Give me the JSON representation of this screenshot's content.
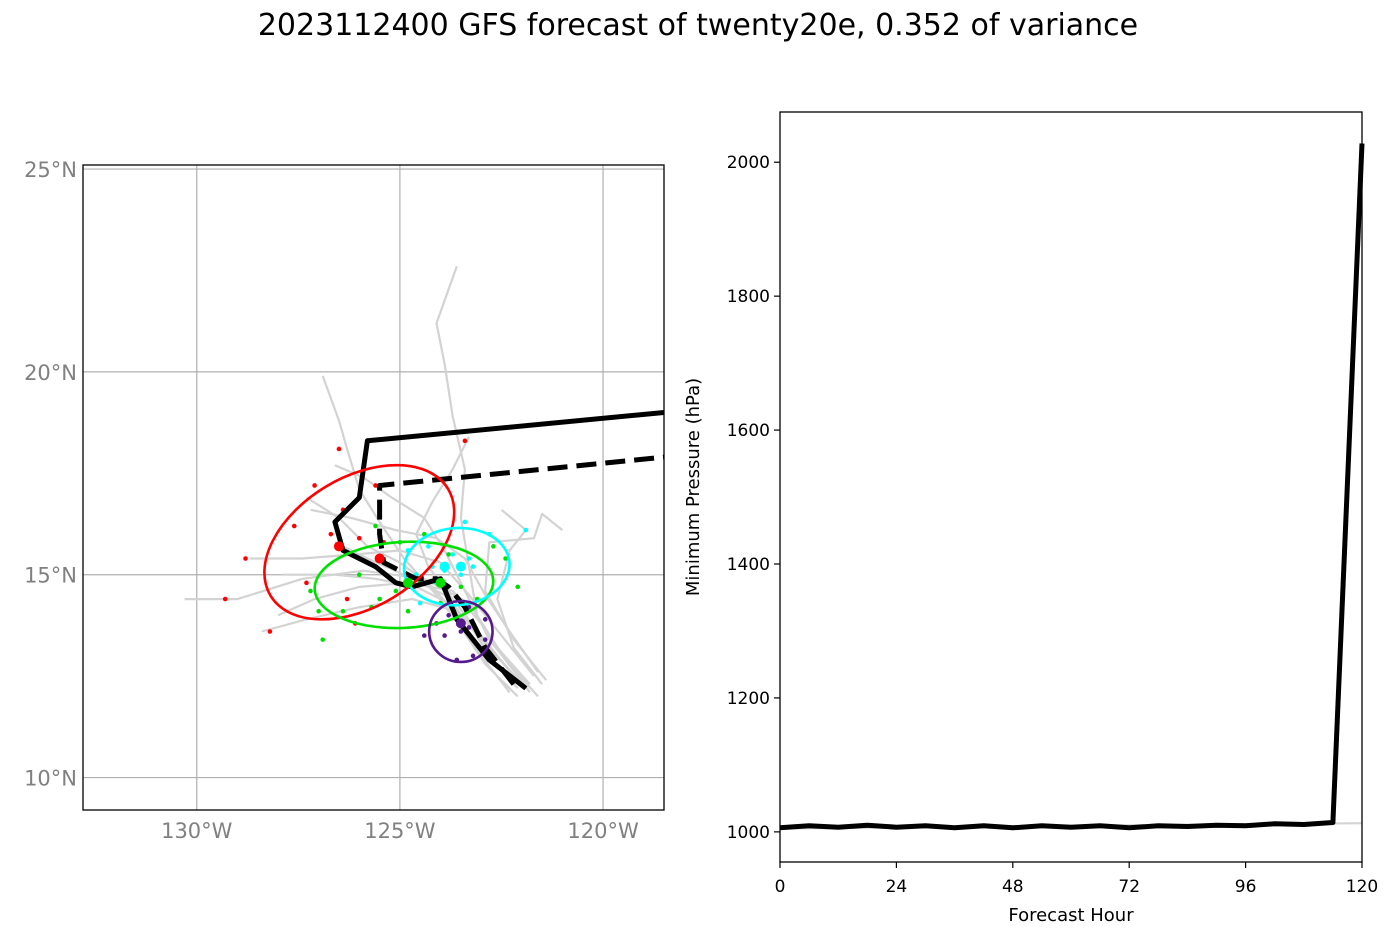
{
  "title": "2023112400 GFS forecast of twenty20e, 0.352 of variance",
  "colors": {
    "mean_track": "#000000",
    "ensemble": "#d3d3d3",
    "cluster_red": "#ff0000",
    "cluster_green": "#00e000",
    "cluster_cyan": "#00ffff",
    "cluster_purple": "#551a8b",
    "grid": "#b0b0b0"
  },
  "chart_data": [
    {
      "type": "map",
      "lon_range": [
        -132.8,
        -118.5
      ],
      "lat_range": [
        9.2,
        25.1
      ],
      "lon_ticks": [
        -130,
        -125,
        -120
      ],
      "lon_tick_labels": [
        "130°W",
        "125°W",
        "120°W"
      ],
      "lat_ticks": [
        25,
        20,
        15,
        10
      ],
      "lat_tick_labels": [
        "25°N",
        "20°N",
        "15°N",
        "10°N"
      ],
      "grid": true,
      "mean_track_solid": [
        [
          -121.9,
          12.2
        ],
        [
          -122.8,
          12.9
        ],
        [
          -123.6,
          13.9
        ],
        [
          -124.0,
          14.9
        ],
        [
          -124.7,
          14.7
        ],
        [
          -125.1,
          14.8
        ],
        [
          -125.6,
          15.2
        ],
        [
          -126.4,
          15.6
        ],
        [
          -126.6,
          16.3
        ],
        [
          -126.0,
          16.9
        ],
        [
          -125.8,
          18.3
        ],
        [
          -118.5,
          19.0
        ]
      ],
      "mean_track_dashed": [
        [
          -122.2,
          12.3
        ],
        [
          -122.9,
          13.2
        ],
        [
          -123.4,
          14.2
        ],
        [
          -123.8,
          14.7
        ],
        [
          -124.1,
          14.9
        ],
        [
          -124.6,
          14.9
        ],
        [
          -125.4,
          15.3
        ],
        [
          -125.5,
          16.0
        ],
        [
          -125.5,
          17.2
        ],
        [
          -118.5,
          17.9
        ]
      ],
      "ensemble_tracks": [
        [
          [
            -122.0,
            12.3
          ],
          [
            -122.9,
            13.3
          ],
          [
            -123.8,
            14.3
          ],
          [
            -124.6,
            14.7
          ],
          [
            -125.6,
            14.9
          ],
          [
            -126.6,
            15.0
          ],
          [
            -127.9,
            15.0
          ]
        ],
        [
          [
            -122.3,
            12.1
          ],
          [
            -123.0,
            13.0
          ],
          [
            -123.6,
            14.0
          ],
          [
            -124.2,
            14.7
          ],
          [
            -125.0,
            15.3
          ],
          [
            -125.8,
            15.7
          ],
          [
            -126.5,
            16.4
          ],
          [
            -127.3,
            16.9
          ]
        ],
        [
          [
            -121.6,
            12.0
          ],
          [
            -122.4,
            12.9
          ],
          [
            -123.1,
            14.0
          ],
          [
            -123.3,
            15.2
          ],
          [
            -123.5,
            16.4
          ],
          [
            -123.4,
            17.6
          ],
          [
            -123.7,
            18.9
          ],
          [
            -123.9,
            20.2
          ],
          [
            -124.1,
            21.2
          ],
          [
            -123.6,
            22.6
          ]
        ],
        [
          [
            -121.8,
            12.3
          ],
          [
            -122.6,
            13.2
          ],
          [
            -123.3,
            14.3
          ],
          [
            -124.4,
            14.9
          ],
          [
            -125.9,
            15.1
          ],
          [
            -127.4,
            14.9
          ],
          [
            -129.0,
            14.4
          ],
          [
            -130.3,
            14.4
          ]
        ],
        [
          [
            -121.4,
            12.4
          ],
          [
            -122.2,
            13.4
          ],
          [
            -122.9,
            14.6
          ],
          [
            -122.8,
            15.8
          ],
          [
            -121.7,
            15.9
          ],
          [
            -121.5,
            16.5
          ],
          [
            -121.0,
            16.1
          ]
        ],
        [
          [
            -122.1,
            12.0
          ],
          [
            -122.9,
            12.8
          ],
          [
            -123.5,
            13.7
          ],
          [
            -124.1,
            14.5
          ],
          [
            -124.9,
            15.4
          ],
          [
            -125.5,
            16.3
          ],
          [
            -126.0,
            17.1
          ],
          [
            -126.3,
            18.1
          ],
          [
            -126.5,
            18.8
          ],
          [
            -126.9,
            19.9
          ]
        ],
        [
          [
            -121.7,
            12.5
          ],
          [
            -122.5,
            13.5
          ],
          [
            -123.3,
            14.5
          ],
          [
            -124.0,
            15.3
          ],
          [
            -125.0,
            15.6
          ],
          [
            -126.1,
            15.5
          ],
          [
            -127.4,
            15.4
          ],
          [
            -128.7,
            15.4
          ]
        ],
        [
          [
            -121.9,
            12.2
          ],
          [
            -122.7,
            13.1
          ],
          [
            -123.6,
            14.1
          ],
          [
            -124.7,
            14.4
          ],
          [
            -126.0,
            14.2
          ],
          [
            -127.3,
            13.9
          ],
          [
            -128.4,
            13.6
          ]
        ],
        [
          [
            -121.5,
            12.3
          ],
          [
            -122.2,
            13.2
          ],
          [
            -122.6,
            14.4
          ],
          [
            -122.3,
            15.6
          ],
          [
            -121.9,
            16.1
          ],
          [
            -122.5,
            16.6
          ]
        ],
        [
          [
            -122.0,
            12.4
          ],
          [
            -122.8,
            13.4
          ],
          [
            -123.4,
            14.6
          ],
          [
            -123.9,
            15.6
          ],
          [
            -124.4,
            16.4
          ],
          [
            -125.2,
            16.9
          ],
          [
            -125.9,
            17.4
          ],
          [
            -126.6,
            17.7
          ]
        ],
        [
          [
            -121.8,
            12.1
          ],
          [
            -122.4,
            12.9
          ],
          [
            -123.0,
            13.8
          ],
          [
            -123.7,
            14.6
          ],
          [
            -124.8,
            14.8
          ],
          [
            -126.0,
            14.7
          ],
          [
            -127.1,
            14.4
          ],
          [
            -128.0,
            14.0
          ]
        ],
        [
          [
            -122.2,
            12.5
          ],
          [
            -123.0,
            13.5
          ],
          [
            -123.7,
            14.4
          ],
          [
            -124.3,
            15.2
          ],
          [
            -124.6,
            16.0
          ],
          [
            -124.2,
            16.8
          ],
          [
            -123.7,
            17.6
          ],
          [
            -123.3,
            18.4
          ]
        ],
        [
          [
            -121.6,
            12.6
          ],
          [
            -122.3,
            13.6
          ],
          [
            -122.9,
            14.5
          ],
          [
            -123.4,
            15.4
          ],
          [
            -124.1,
            15.9
          ],
          [
            -125.1,
            16.1
          ],
          [
            -126.2,
            16.4
          ],
          [
            -127.2,
            16.6
          ]
        ],
        [
          [
            -122.1,
            12.2
          ],
          [
            -122.8,
            13.0
          ],
          [
            -123.3,
            13.8
          ],
          [
            -123.9,
            14.5
          ],
          [
            -124.9,
            15.0
          ],
          [
            -125.8,
            15.4
          ],
          [
            -126.6,
            15.8
          ]
        ]
      ],
      "member_points": {
        "red": [
          [
            -126.5,
            18.1
          ],
          [
            -126.4,
            16.6
          ],
          [
            -127.1,
            17.2
          ],
          [
            -125.6,
            17.2
          ],
          [
            -127.6,
            16.2
          ],
          [
            -126.7,
            16.0
          ],
          [
            -126.0,
            15.9
          ],
          [
            -125.4,
            15.8
          ],
          [
            -128.8,
            15.4
          ],
          [
            -127.3,
            14.8
          ],
          [
            -126.3,
            14.4
          ],
          [
            -126.1,
            13.8
          ],
          [
            -128.2,
            13.6
          ],
          [
            -129.3,
            14.4
          ],
          [
            -123.4,
            18.3
          ]
        ],
        "green": [
          [
            -125.6,
            16.2
          ],
          [
            -125.0,
            15.8
          ],
          [
            -124.4,
            16.0
          ],
          [
            -123.8,
            15.5
          ],
          [
            -122.7,
            15.7
          ],
          [
            -122.4,
            15.4
          ],
          [
            -122.1,
            14.7
          ],
          [
            -123.1,
            14.4
          ],
          [
            -124.0,
            14.3
          ],
          [
            -124.8,
            14.1
          ],
          [
            -125.7,
            14.2
          ],
          [
            -126.4,
            14.1
          ],
          [
            -127.0,
            14.1
          ],
          [
            -127.2,
            14.6
          ],
          [
            -126.9,
            13.4
          ],
          [
            -125.1,
            14.6
          ],
          [
            -124.5,
            14.8
          ],
          [
            -123.5,
            14.7
          ],
          [
            -126.0,
            15.0
          ],
          [
            -125.5,
            14.4
          ]
        ],
        "cyan": [
          [
            -124.8,
            15.6
          ],
          [
            -124.3,
            15.7
          ],
          [
            -123.7,
            15.5
          ],
          [
            -123.3,
            15.4
          ],
          [
            -123.4,
            16.3
          ],
          [
            -122.8,
            16.0
          ],
          [
            -121.9,
            16.1
          ],
          [
            -123.9,
            15.1
          ],
          [
            -123.5,
            15.0
          ],
          [
            -123.2,
            15.2
          ],
          [
            -124.1,
            14.8
          ],
          [
            -124.5,
            14.3
          ],
          [
            -124.2,
            15.2
          ],
          [
            -124.6,
            15.0
          ]
        ],
        "purple": [
          [
            -123.8,
            14.0
          ],
          [
            -123.3,
            14.2
          ],
          [
            -122.9,
            13.9
          ],
          [
            -123.5,
            13.6
          ],
          [
            -123.9,
            13.5
          ],
          [
            -124.1,
            13.8
          ],
          [
            -123.2,
            13.0
          ],
          [
            -123.6,
            12.9
          ],
          [
            -124.4,
            13.5
          ],
          [
            -122.9,
            13.4
          ],
          [
            -123.3,
            13.7
          ]
        ]
      },
      "cluster_means": {
        "red": [
          [
            -126.5,
            15.7
          ],
          [
            -125.5,
            15.4
          ]
        ],
        "green": [
          [
            -124.8,
            14.8
          ],
          [
            -124.0,
            14.8
          ]
        ],
        "cyan": [
          [
            -123.9,
            15.2
          ],
          [
            -123.5,
            15.2
          ]
        ],
        "purple": [
          [
            -123.5,
            13.8
          ]
        ]
      },
      "cluster_ellipses": [
        {
          "cluster": "red",
          "center": [
            -126.0,
            15.8
          ],
          "lon_radius": 2.55,
          "lat_radius": 1.6,
          "angle_deg": -31
        },
        {
          "cluster": "green",
          "center": [
            -124.9,
            14.75
          ],
          "lon_radius": 2.2,
          "lat_radius": 1.06,
          "angle_deg": -3
        },
        {
          "cluster": "cyan",
          "center": [
            -123.6,
            15.2
          ],
          "lon_radius": 1.3,
          "lat_radius": 0.95,
          "angle_deg": -5
        },
        {
          "cluster": "purple",
          "center": [
            -123.5,
            13.6
          ],
          "lon_radius": 0.78,
          "lat_radius": 0.75,
          "angle_deg": 0
        }
      ]
    },
    {
      "type": "line",
      "xlabel": "Forecast Hour",
      "ylabel": "Minimum Pressure (hPa)",
      "xlim": [
        0,
        120
      ],
      "ylim": [
        955,
        2075
      ],
      "xticks": [
        0,
        24,
        48,
        72,
        96,
        120
      ],
      "yticks": [
        1000,
        1200,
        1400,
        1600,
        1800,
        2000
      ],
      "series": [
        {
          "x": [
            0,
            6,
            12,
            18,
            24,
            30,
            36,
            42,
            48,
            54,
            60,
            66,
            72,
            78,
            84,
            90,
            96,
            102,
            108,
            114,
            120
          ],
          "values": [
            1006,
            1009,
            1007,
            1010,
            1007,
            1009,
            1006,
            1009,
            1006,
            1009,
            1007,
            1009,
            1006,
            1009,
            1008,
            1010,
            1009,
            1012,
            1011,
            1014,
            2028
          ]
        },
        {
          "x": [
            0,
            120
          ],
          "values": [
            1005,
            1013
          ]
        }
      ]
    }
  ]
}
